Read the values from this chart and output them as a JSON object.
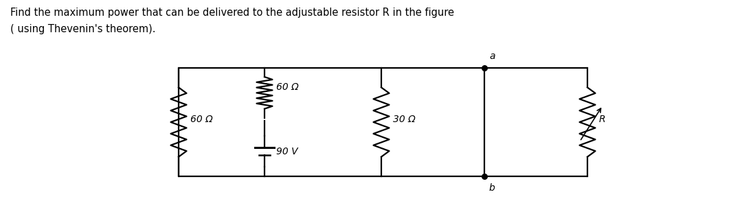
{
  "title_line1": "Find the maximum power that can be delivered to the adjustable resistor R in the figure",
  "title_line2": "( using Thevenin's theorem).",
  "bg_color": "#ffffff",
  "text_color": "#000000",
  "circuit": {
    "left_resistor_label": "60 Ω",
    "mid_resistor_label": "60 Ω",
    "voltage_label": "90 V",
    "right_resistor_label": "30 Ω",
    "R_label": "R",
    "node_a_label": "a",
    "node_b_label": "b"
  }
}
